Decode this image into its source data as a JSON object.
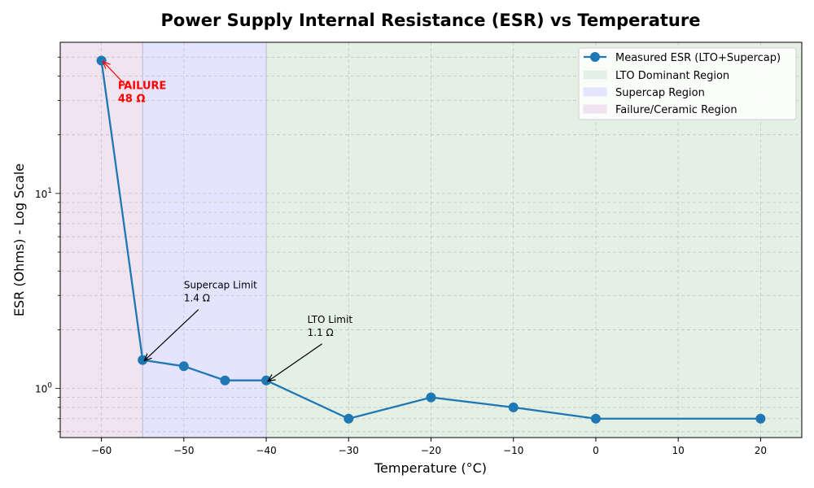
{
  "chart_data": {
    "type": "line",
    "title": "Power Supply Internal Resistance (ESR) vs Temperature",
    "xlabel": "Temperature (°C)",
    "ylabel": "ESR (Ohms) - Log Scale",
    "xlim": [
      -65,
      25
    ],
    "ylim": [
      0.56,
      59.6
    ],
    "yscale": "log",
    "grid": true,
    "legend_position": "top-right",
    "x_ticks": [
      "−60",
      "−50",
      "−40",
      "−30",
      "−20",
      "−10",
      "0",
      "10",
      "20"
    ],
    "x_tick_values": [
      -60,
      -50,
      -40,
      -30,
      -20,
      -10,
      0,
      10,
      20
    ],
    "y_ticks": [
      {
        "value": 1,
        "base": "10",
        "exp": "0"
      },
      {
        "value": 10,
        "base": "10",
        "exp": "1"
      }
    ],
    "series": [
      {
        "name": "Measured ESR (LTO+Supercap)",
        "color": "#1f77b4",
        "x": [
          -60,
          -55,
          -50,
          -45,
          -40,
          -30,
          -20,
          -10,
          0,
          20
        ],
        "y": [
          48,
          1.4,
          1.3,
          1.1,
          1.1,
          0.7,
          0.9,
          0.8,
          0.7,
          0.7
        ]
      }
    ],
    "regions": [
      {
        "name": "LTO Dominant Region",
        "x": [
          -40,
          25
        ],
        "color": "#e5f0e5"
      },
      {
        "name": "Supercap Region",
        "x": [
          -55,
          -40
        ],
        "color": "#e4e4ff"
      },
      {
        "name": "Failure/Ceramic Region",
        "x": [
          -65,
          -55
        ],
        "color": "#f0e4f0"
      }
    ],
    "annotations": [
      {
        "line1": "FAILURE",
        "line2": "48 Ω",
        "point": [
          -60,
          48
        ],
        "color": "#ff0000"
      },
      {
        "line1": "Supercap Limit",
        "line2": "1.4 Ω",
        "point": [
          -55,
          1.4
        ],
        "color": "#000000"
      },
      {
        "line1": "LTO Limit",
        "line2": "1.1 Ω",
        "point": [
          -40,
          1.1
        ],
        "color": "#000000"
      }
    ]
  }
}
